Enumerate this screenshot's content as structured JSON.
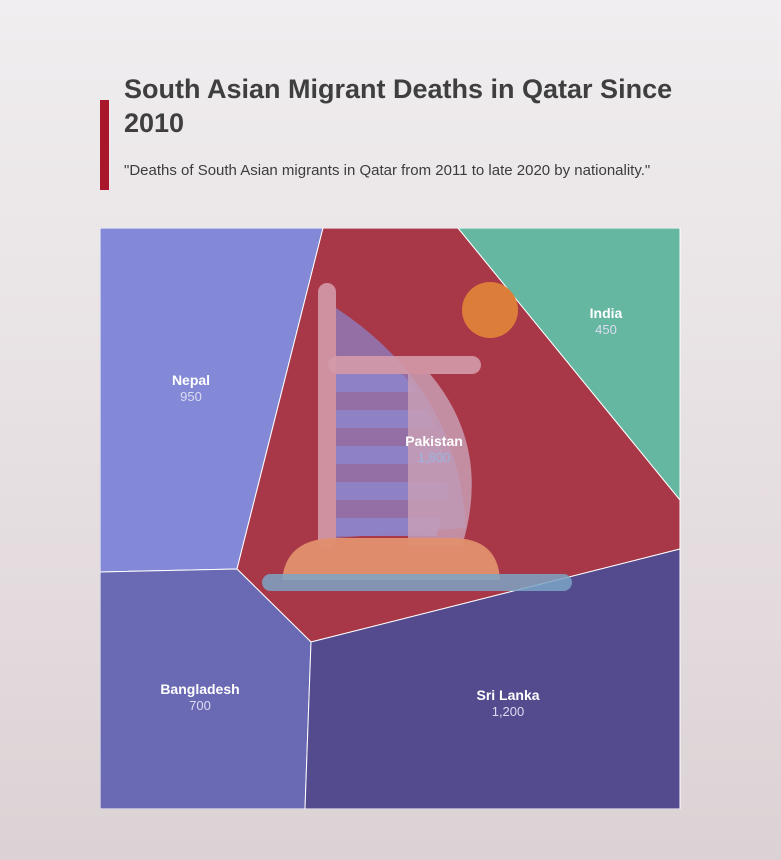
{
  "title": "South Asian Migrant Deaths in Qatar Since 2010",
  "subtitle": "\"Deaths of South Asian migrants in Qatar from 2011 to late 2020 by nationality.\"",
  "chart_data": {
    "type": "voronoi-treemap",
    "title": "South Asian Migrant Deaths in Qatar Since 2010",
    "subtitle": "\"Deaths of South Asian migrants in Qatar from 2011 to late 2020 by nationality.\"",
    "categories": [
      "Pakistan",
      "Sri Lanka",
      "Nepal",
      "Bangladesh",
      "India"
    ],
    "values": [
      1800,
      1200,
      950,
      700,
      450
    ],
    "value_labels": [
      "1,800",
      "1,200",
      "950",
      "700",
      "450"
    ],
    "colors": [
      "#a83848",
      "#544b8f",
      "#8389d6",
      "#6a69b3",
      "#65b7a1"
    ],
    "legend": "none",
    "decoration": "burj-al-arab-icon"
  }
}
